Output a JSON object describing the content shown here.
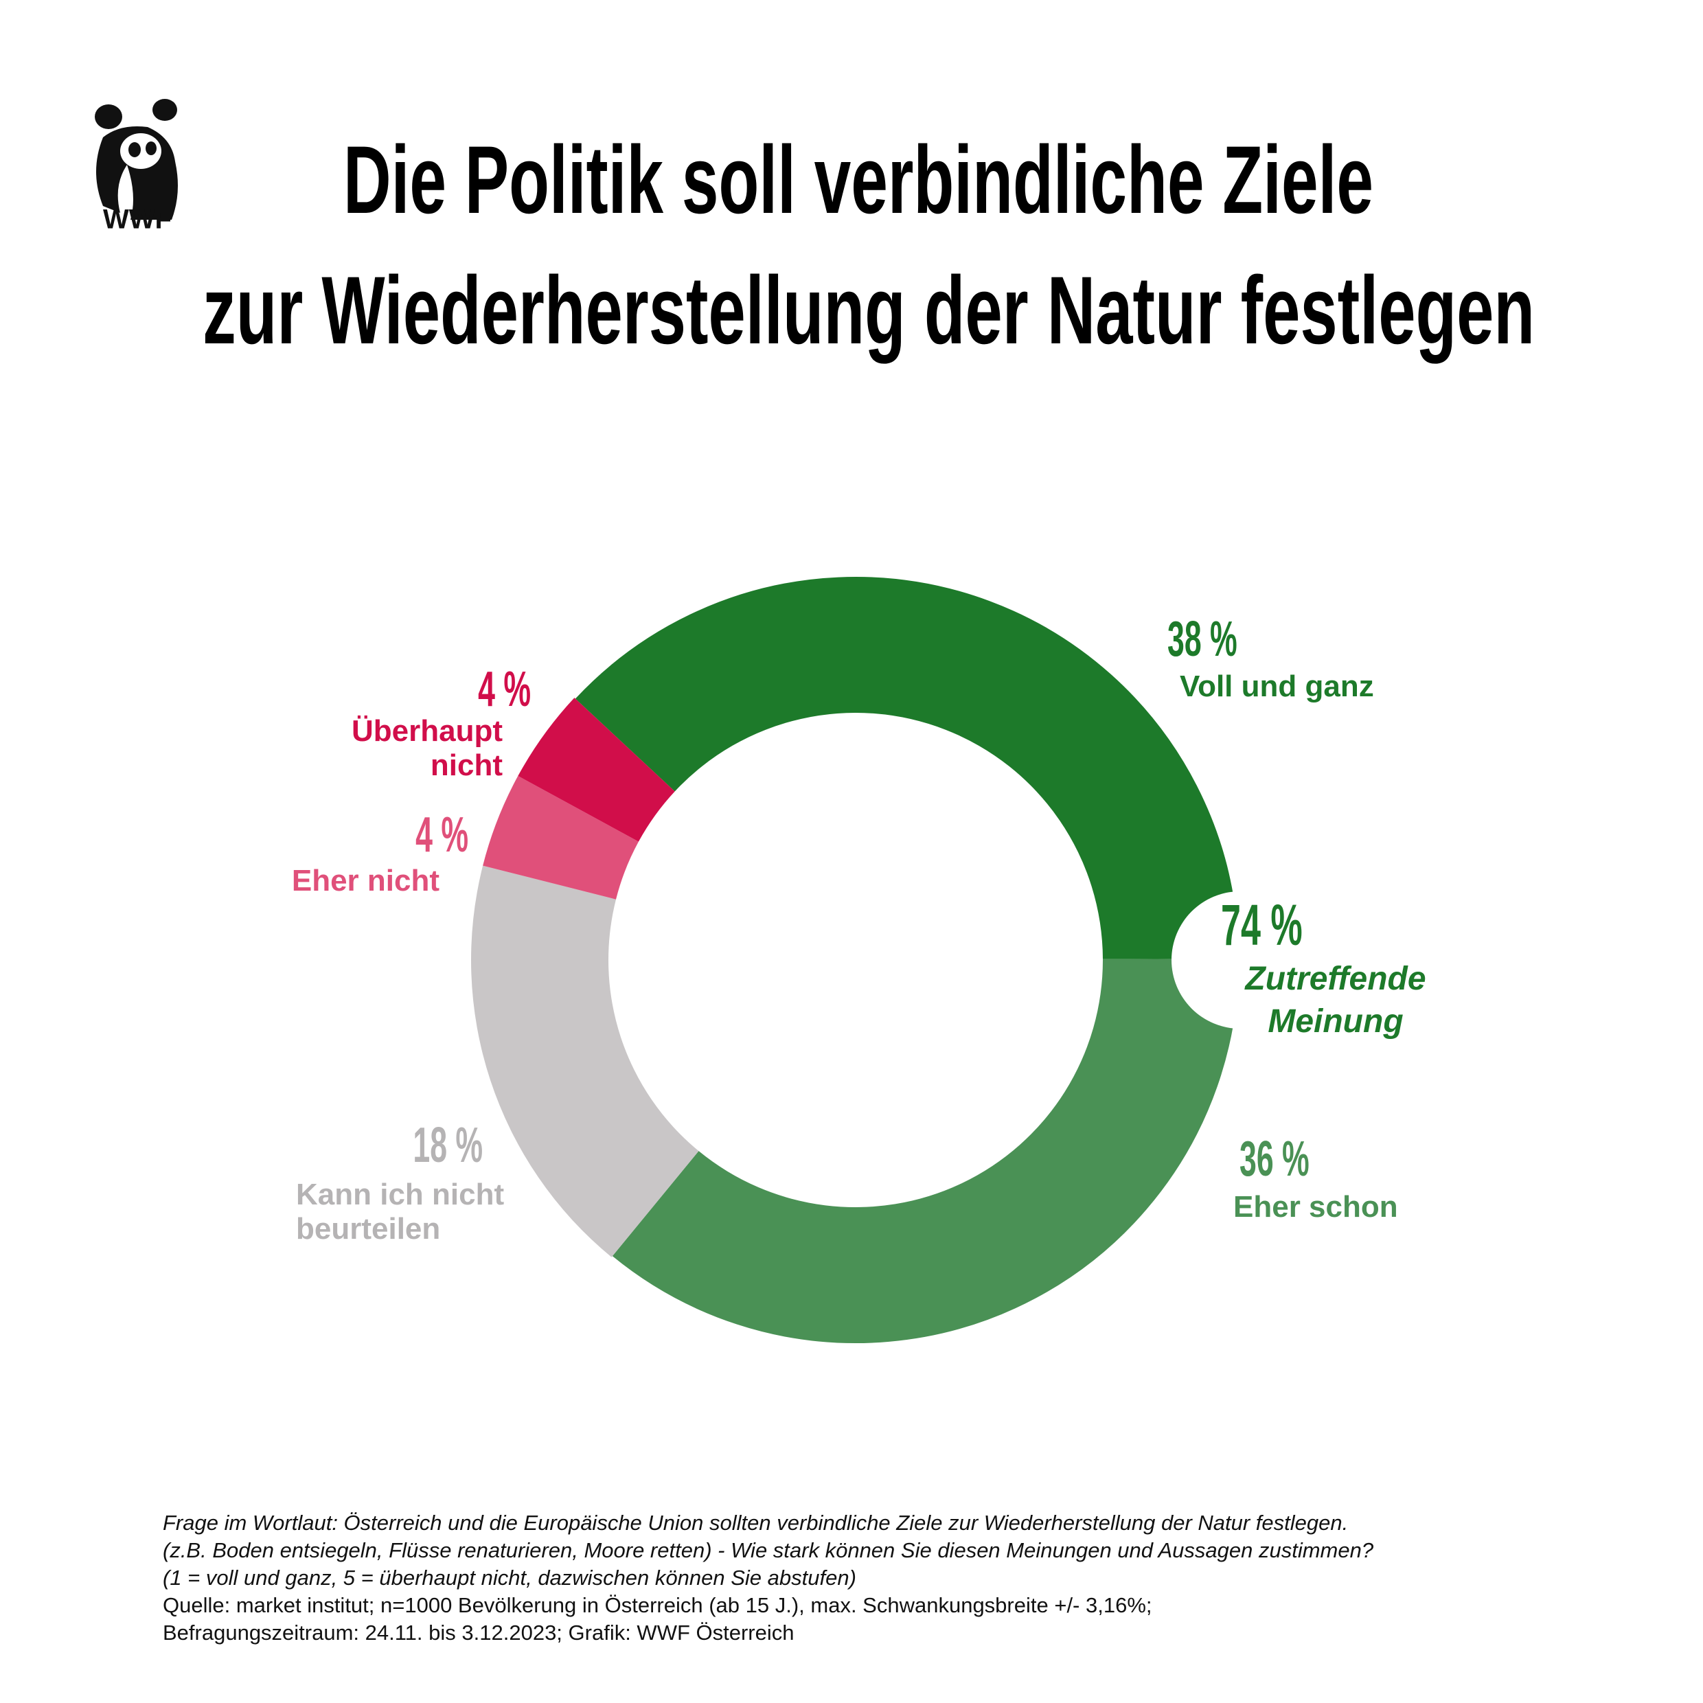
{
  "logo": "WWF",
  "chart_data": {
    "type": "donut",
    "title": [
      "Die Politik soll verbindliche Ziele",
      "zur Wiederherstellung der Natur festlegen"
    ],
    "categories": [
      "Voll und ganz",
      "Eher schon",
      "Kann ich nicht beurteilen",
      "Eher nicht",
      "Überhaupt nicht"
    ],
    "values": [
      38,
      36,
      18,
      4,
      4
    ],
    "value_labels": [
      "38 %",
      "36 %",
      "18 %",
      "4 %",
      "4 %"
    ],
    "colors": [
      "#1d7a2a",
      "#4a9155",
      "#c9c6c7",
      "#e0507a",
      "#d10e4a"
    ],
    "label_colors": [
      "#1d7a2a",
      "#4a9155",
      "#b5b3b4",
      "#e0507a",
      "#d10e4a"
    ],
    "start_angle": -47,
    "summary": {
      "value": 74,
      "label": "74 %",
      "text": "Zutreffende Meinung",
      "color": "#1d7a2a"
    }
  },
  "footnote": {
    "question": [
      "Frage im Wortlaut: Österreich und die Europäische Union sollten verbindliche Ziele zur Wiederherstellung der Natur festlegen.",
      "(z.B. Boden entsiegeln, Flüsse renaturieren, Moore retten) - Wie stark können Sie diesen Meinungen und Aussagen zustimmen?",
      "(1 = voll und ganz, 5 = überhaupt nicht, dazwischen können Sie abstufen)"
    ],
    "source": [
      "Quelle: market institut; n=1000 Bevölkerung in Österreich (ab 15 J.), max. Schwankungsbreite +/- 3,16%;",
      "Befragungszeitraum: 24.11. bis 3.12.2023; Grafik: WWF Österreich"
    ]
  }
}
